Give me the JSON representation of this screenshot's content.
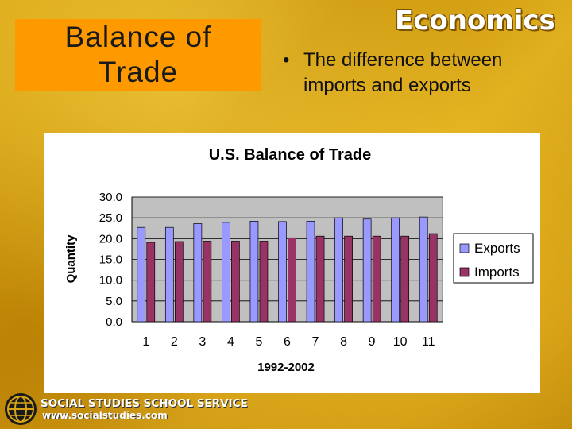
{
  "slide": {
    "title_line1": "Balance of",
    "title_line2": "Trade",
    "brand_logo": "Economics",
    "bullet_marker": "•",
    "bullet_text": "The difference between imports and exports"
  },
  "footer": {
    "org_name": "SOCIAL STUDIES SCHOOL SERVICE",
    "url": "www.socialstudies.com"
  },
  "colors": {
    "title_box": "#ff9900",
    "exports": "#9999ff",
    "imports": "#993366",
    "plot_area": "#c0c0c0"
  },
  "chart_data": {
    "type": "bar",
    "title": "U.S. Balance of Trade",
    "xlabel": "1992-2002",
    "ylabel": "Quantity",
    "categories": [
      "1",
      "2",
      "3",
      "4",
      "5",
      "6",
      "7",
      "8",
      "9",
      "10",
      "11"
    ],
    "series": [
      {
        "name": "Exports",
        "values": [
          22.7,
          22.7,
          23.6,
          23.9,
          24.2,
          24.1,
          24.2,
          25.0,
          24.7,
          25.0,
          25.2
        ]
      },
      {
        "name": "Imports",
        "values": [
          19.1,
          19.3,
          19.4,
          19.4,
          19.4,
          20.2,
          20.6,
          20.6,
          20.6,
          20.6,
          21.2
        ]
      }
    ],
    "ylim": [
      0,
      30
    ],
    "yticks": [
      "0.0",
      "5.0",
      "10.0",
      "15.0",
      "20.0",
      "25.0",
      "30.0"
    ],
    "grid": true,
    "legend_position": "right"
  }
}
